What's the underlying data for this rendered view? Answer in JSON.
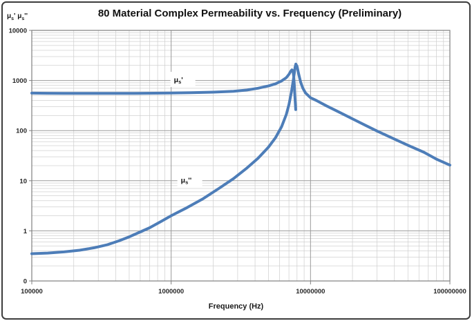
{
  "chart_data": {
    "type": "line",
    "title": "80 Material Complex Permeability vs. Frequency (Preliminary)",
    "xlabel": "Frequency (Hz)",
    "ylabel": "μs' μs''",
    "x_scale": "log",
    "y_scale": "log",
    "xlim": [
      100000,
      100000000
    ],
    "ylim": [
      0.1,
      10000
    ],
    "x_tick_values": [
      100000,
      1000000,
      10000000,
      100000000
    ],
    "x_tick_labels": [
      "100000",
      "1000000",
      "10000000",
      "100000000"
    ],
    "y_tick_values": [
      10000,
      1000,
      100,
      10,
      1,
      0.1
    ],
    "y_tick_labels": [
      "10000",
      "1000",
      "100",
      "10",
      "1",
      "0"
    ],
    "grid": "major and minor log gridlines on both axes",
    "legend_position": "inline labels on plot",
    "line_color": "#4d7db8",
    "grid_major_color": "#9a9a9a",
    "grid_minor_color": "#d0d0d0",
    "frame_color": "#7f7f7f",
    "series": [
      {
        "name": "μs'",
        "label": "μs'",
        "label_at": [
          1160000,
          1050
        ],
        "points": [
          [
            100000,
            560
          ],
          [
            130000,
            557
          ],
          [
            170000,
            555
          ],
          [
            220000,
            553
          ],
          [
            300000,
            552
          ],
          [
            400000,
            552
          ],
          [
            550000,
            554
          ],
          [
            750000,
            558
          ],
          [
            1000000,
            563
          ],
          [
            1400000,
            572
          ],
          [
            2000000,
            586
          ],
          [
            2800000,
            610
          ],
          [
            3500000,
            645
          ],
          [
            4200000,
            700
          ],
          [
            5000000,
            780
          ],
          [
            5600000,
            860
          ],
          [
            6200000,
            980
          ],
          [
            6700000,
            1140
          ],
          [
            7000000,
            1320
          ],
          [
            7200000,
            1520
          ],
          [
            7350000,
            1630
          ],
          [
            7480000,
            1560
          ],
          [
            7580000,
            1180
          ],
          [
            7650000,
            820
          ],
          [
            7700000,
            580
          ],
          [
            7760000,
            400
          ],
          [
            7800000,
            310
          ],
          [
            7830000,
            262
          ]
        ]
      },
      {
        "name": "μs''",
        "label": "μs''",
        "label_at": [
          1300000,
          10.5
        ],
        "points": [
          [
            100000,
            0.35
          ],
          [
            130000,
            0.36
          ],
          [
            170000,
            0.38
          ],
          [
            220000,
            0.41
          ],
          [
            280000,
            0.46
          ],
          [
            350000,
            0.53
          ],
          [
            420000,
            0.63
          ],
          [
            500000,
            0.76
          ],
          [
            600000,
            0.95
          ],
          [
            700000,
            1.15
          ],
          [
            850000,
            1.55
          ],
          [
            1000000,
            2.0
          ],
          [
            1300000,
            2.9
          ],
          [
            1700000,
            4.4
          ],
          [
            2200000,
            7.0
          ],
          [
            2800000,
            11
          ],
          [
            3500000,
            18
          ],
          [
            4200000,
            28
          ],
          [
            5000000,
            47
          ],
          [
            5600000,
            72
          ],
          [
            6200000,
            120
          ],
          [
            6700000,
            210
          ],
          [
            7000000,
            330
          ],
          [
            7300000,
            600
          ],
          [
            7500000,
            950
          ],
          [
            7650000,
            1400
          ],
          [
            7750000,
            1850
          ],
          [
            7850000,
            2130
          ],
          [
            8000000,
            1930
          ],
          [
            8200000,
            1380
          ],
          [
            8500000,
            920
          ],
          [
            8800000,
            710
          ],
          [
            9200000,
            565
          ],
          [
            10000000,
            452
          ],
          [
            11000000,
            400
          ],
          [
            13000000,
            312
          ],
          [
            16000000,
            235
          ],
          [
            20000000,
            172
          ],
          [
            25000000,
            126
          ],
          [
            30000000,
            98
          ],
          [
            40000000,
            68
          ],
          [
            50000000,
            51
          ],
          [
            65000000,
            37
          ],
          [
            80000000,
            27
          ],
          [
            100000000,
            20.5
          ]
        ]
      }
    ]
  }
}
